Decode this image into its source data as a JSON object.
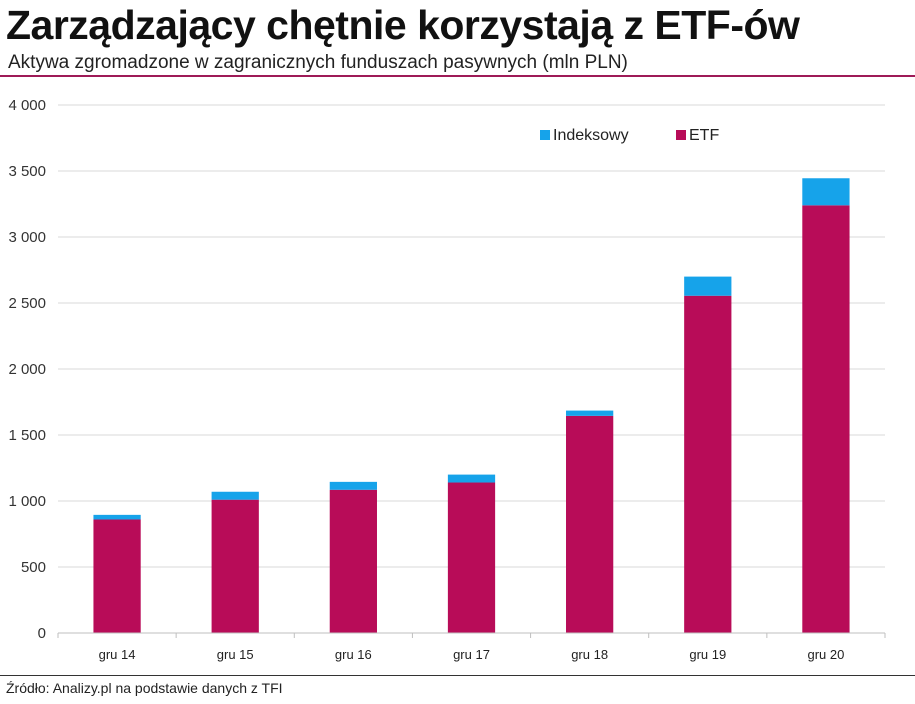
{
  "header": {
    "title": "Zarządzający chętnie korzystają z ETF-ów",
    "subtitle": "Aktywa zgromadzone w zagranicznych funduszach pasywnych (mln PLN)"
  },
  "footer": {
    "source": "Źródło: Analizy.pl na podstawie danych z TFI"
  },
  "chart_data": {
    "type": "bar",
    "stacked": true,
    "title": "Zarządzający chętnie korzystają z ETF-ów",
    "subtitle": "Aktywa zgromadzone w zagranicznych funduszach pasywnych (mln PLN)",
    "categories": [
      "gru 14",
      "gru 15",
      "gru 16",
      "gru 17",
      "gru 18",
      "gru 19",
      "gru 20"
    ],
    "series": [
      {
        "name": "ETF",
        "color": "#b80c58",
        "values": [
          860,
          1010,
          1085,
          1140,
          1645,
          2555,
          3240
        ]
      },
      {
        "name": "Indeksowy",
        "color": "#16a3ea",
        "values": [
          35,
          60,
          60,
          60,
          40,
          145,
          205
        ]
      }
    ],
    "legend_order": [
      "Indeksowy",
      "ETF"
    ],
    "yticks": [
      "0",
      "500",
      "1 000",
      "1 500",
      "2 000",
      "2 500",
      "3 000",
      "3 500",
      "4 000"
    ],
    "ylim": [
      0,
      4000
    ],
    "ystep": 500,
    "grid": true,
    "legend_position": "top-right",
    "xlabel": "",
    "ylabel": ""
  }
}
